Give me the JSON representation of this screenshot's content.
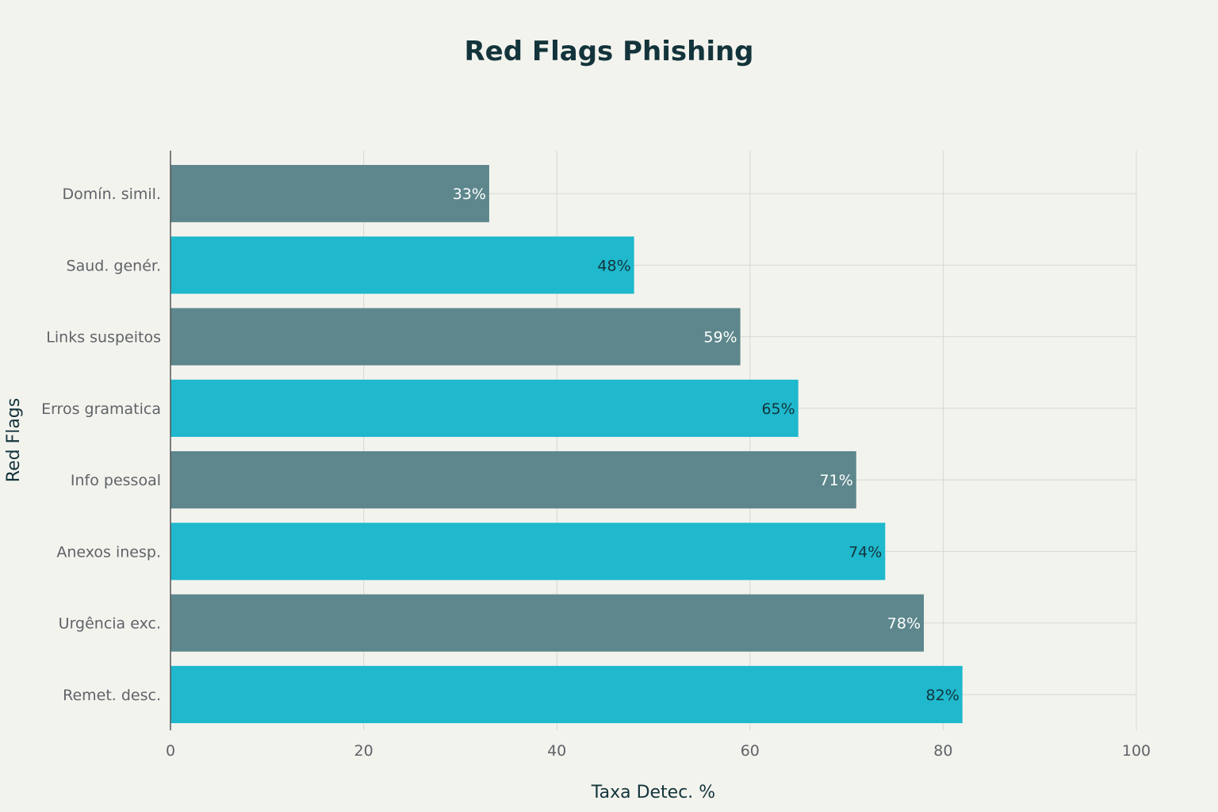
{
  "chart_data": {
    "type": "bar",
    "orientation": "horizontal",
    "title": "Red Flags Phishing",
    "xlabel": "Taxa Detec. %",
    "ylabel": "Red Flags",
    "xlim": [
      0,
      100
    ],
    "xticks": [
      0,
      20,
      40,
      60,
      80,
      100
    ],
    "grid": true,
    "categories": [
      "Domín. simil.",
      "Saud. genér.",
      "Links suspeitos",
      "Erros gramatica",
      "Info pessoal",
      "Anexos inesp.",
      "Urgência exc.",
      "Remet. desc."
    ],
    "values": [
      33,
      48,
      59,
      65,
      71,
      74,
      78,
      82
    ],
    "data_labels": [
      "33%",
      "48%",
      "59%",
      "65%",
      "71%",
      "74%",
      "78%",
      "82%"
    ],
    "colors": [
      "#5D878C",
      "#1FB8CD",
      "#5D878C",
      "#1FB8CD",
      "#5D878C",
      "#1FB8CD",
      "#5D878C",
      "#1FB8CD"
    ],
    "label_colors": [
      "#FFFFFF",
      "#13343B",
      "#FFFFFF",
      "#13343B",
      "#FFFFFF",
      "#13343B",
      "#FFFFFF",
      "#13343B"
    ]
  }
}
